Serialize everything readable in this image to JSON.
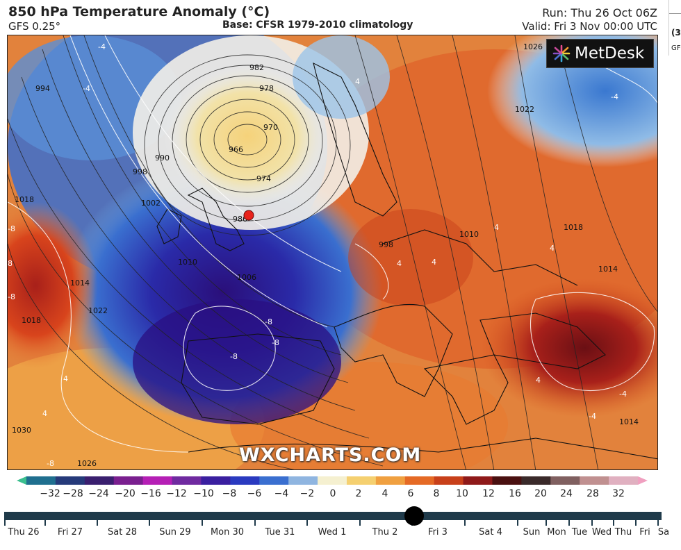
{
  "header": {
    "title": "850 hPa Temperature Anomaly (°C)",
    "model": "GFS 0.25°",
    "base": "Base: CFSR 1979-2010 climatology",
    "run": "Run: Thu 26 Oct 06Z",
    "valid": "Valid: Fri 3 Nov 00:00 UTC"
  },
  "next_frame": {
    "fragment1": "(3",
    "fragment2": "GF"
  },
  "logo": {
    "text": "MetDesk",
    "icon": "metdesk-logo-icon"
  },
  "watermark": "WXCHARTS.COM",
  "map": {
    "marker_color": "#e8221c",
    "isobar_labels": [
      "982",
      "978",
      "970",
      "966",
      "974",
      "986",
      "990",
      "994",
      "998",
      "1002",
      "1006",
      "1010",
      "1014",
      "1018",
      "1022",
      "1026",
      "1030",
      "1018",
      "1022",
      "1026",
      "1010",
      "1014",
      "1018",
      "998",
      "1014"
    ],
    "anomaly_labels": [
      "-4",
      "-4",
      "-4",
      "-8",
      "-8",
      "-8",
      "-8",
      "4",
      "4",
      "4",
      "4",
      "4",
      "4",
      "4",
      "-8",
      "4",
      "-4",
      "8",
      "-8",
      "-4"
    ]
  },
  "colorbar": {
    "labels": [
      "−32",
      "−28",
      "−24",
      "−20",
      "−16",
      "−12",
      "−10",
      "−8",
      "−6",
      "−4",
      "−2",
      "0",
      "2",
      "4",
      "6",
      "8",
      "10",
      "12",
      "16",
      "20",
      "24",
      "28",
      "32"
    ],
    "colors": [
      "#3bbf8f",
      "#1f6f8f",
      "#253a7a",
      "#3a1f6f",
      "#7a1f8f",
      "#b51fb5",
      "#6f2aa0",
      "#3a1fa0",
      "#2a3ac0",
      "#3a6fd0",
      "#8fb5e0",
      "#f5f0d0",
      "#f5d070",
      "#f0a040",
      "#e56a25",
      "#c8401a",
      "#8f1a1a",
      "#4a1010",
      "#3a2a2a",
      "#806060",
      "#c09090",
      "#e0b0c0",
      "#f0a0c0"
    ]
  },
  "timeline": {
    "labels": [
      "Thu 26",
      "Fri 27",
      "Sat 28",
      "Sun 29",
      "Mon 30",
      "Tue 31",
      "Wed 1",
      "Thu 2",
      "Fri 3",
      "Sat 4",
      "Sun",
      "Mon",
      "Tue",
      "Wed",
      "Thu",
      "Fri",
      "Sa"
    ],
    "selected": "Fri 3"
  }
}
